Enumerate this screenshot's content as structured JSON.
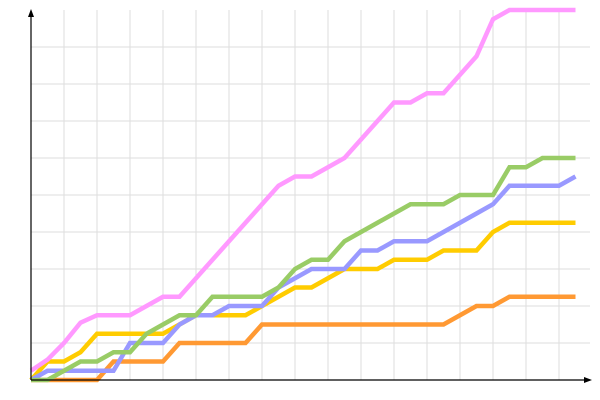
{
  "chart_data": {
    "type": "line",
    "title": "",
    "xlabel": "",
    "ylabel": "",
    "xlim": [
      0,
      33
    ],
    "ylim": [
      0,
      10
    ],
    "grid": true,
    "legend": "none",
    "x": [
      0,
      1,
      2,
      3,
      4,
      5,
      6,
      7,
      8,
      9,
      10,
      11,
      12,
      13,
      14,
      15,
      16,
      17,
      18,
      19,
      20,
      21,
      22,
      23,
      24,
      25,
      26,
      27,
      28,
      29,
      30,
      31,
      32,
      33
    ],
    "series": [
      {
        "color": "#ff9933",
        "values": [
          0,
          0,
          0,
          0,
          0,
          0.5,
          0.5,
          0.5,
          0.5,
          1,
          1,
          1,
          1,
          1,
          1.5,
          1.5,
          1.5,
          1.5,
          1.5,
          1.5,
          1.5,
          1.5,
          1.5,
          1.5,
          1.5,
          1.5,
          1.75,
          2,
          2,
          2.25,
          2.25,
          2.25,
          2.25,
          2.25
        ]
      },
      {
        "color": "#ffcc00",
        "values": [
          0,
          0.5,
          0.5,
          0.75,
          1.25,
          1.25,
          1.25,
          1.25,
          1.25,
          1.5,
          1.75,
          1.75,
          1.75,
          1.75,
          2,
          2.25,
          2.5,
          2.5,
          2.75,
          3,
          3,
          3,
          3.25,
          3.25,
          3.25,
          3.5,
          3.5,
          3.5,
          4,
          4.25,
          4.25,
          4.25,
          4.25,
          4.25
        ]
      },
      {
        "color": "#9999ff",
        "values": [
          0,
          0.25,
          0.25,
          0.25,
          0.25,
          0.25,
          1,
          1,
          1,
          1.5,
          1.75,
          1.75,
          2,
          2,
          2,
          2.5,
          2.75,
          3,
          3,
          3,
          3.5,
          3.5,
          3.75,
          3.75,
          3.75,
          4,
          4.25,
          4.5,
          4.75,
          5.25,
          5.25,
          5.25,
          5.25,
          5.5
        ]
      },
      {
        "color": "#99cc66",
        "values": [
          0,
          0,
          0.25,
          0.5,
          0.5,
          0.75,
          0.75,
          1.25,
          1.5,
          1.75,
          1.75,
          2.25,
          2.25,
          2.25,
          2.25,
          2.5,
          3,
          3.25,
          3.25,
          3.75,
          4,
          4.25,
          4.5,
          4.75,
          4.75,
          4.75,
          5,
          5,
          5,
          5.75,
          5.75,
          6,
          6,
          6
        ]
      },
      {
        "color": "#ff99ff",
        "values": [
          0.25,
          0.55,
          1,
          1.55,
          1.75,
          1.75,
          1.75,
          2,
          2.25,
          2.25,
          2.75,
          3.25,
          3.75,
          4.25,
          4.75,
          5.25,
          5.5,
          5.5,
          5.75,
          6,
          6.5,
          7,
          7.5,
          7.5,
          7.75,
          7.75,
          8.25,
          8.75,
          9.75,
          10,
          10,
          10,
          10,
          10
        ]
      }
    ],
    "colors": {
      "grid": "#dddddd",
      "axis": "#000000"
    }
  }
}
